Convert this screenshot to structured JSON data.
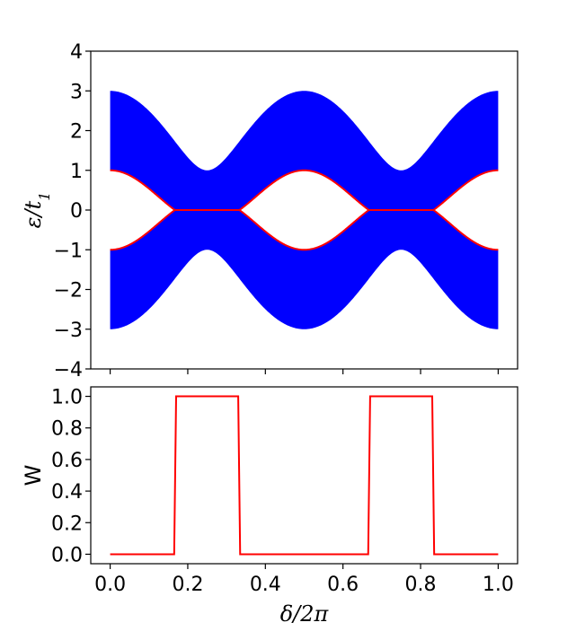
{
  "chart_data": [
    {
      "type": "area",
      "panel": "top",
      "ylabel": "ε/t₁",
      "ylabel_parts": {
        "main": "ε/t",
        "sub": "1"
      },
      "xlim": [
        -0.05,
        1.05
      ],
      "ylim": [
        -4,
        4
      ],
      "yticks": [
        4,
        3,
        2,
        1,
        0,
        -1,
        -2,
        -3,
        -4
      ],
      "ytick_labels": [
        "4",
        "3",
        "2",
        "1",
        "0",
        "−1",
        "−2",
        "−3",
        "−4"
      ],
      "xticks": [
        0.0,
        0.2,
        0.4,
        0.6,
        0.8,
        1.0
      ],
      "xtick_labels_shown": false,
      "band_color": "#0000ff",
      "edge_state_color": "#ff0000",
      "series": [],
      "bands_description_points": {
        "outer_band_top": [
          [
            0.0,
            3.0
          ],
          [
            0.25,
            1.0
          ],
          [
            0.5,
            3.0
          ],
          [
            0.75,
            1.0
          ],
          [
            1.0,
            3.0
          ]
        ],
        "inner_band_top": [
          [
            0.0,
            1.0
          ],
          [
            0.167,
            0.0
          ],
          [
            0.333,
            0.0
          ],
          [
            0.5,
            1.0
          ],
          [
            0.667,
            0.0
          ],
          [
            0.833,
            0.0
          ],
          [
            1.0,
            1.0
          ]
        ],
        "inner_band_bottom": [
          [
            0.0,
            -1.0
          ],
          [
            0.167,
            0.0
          ],
          [
            0.333,
            0.0
          ],
          [
            0.5,
            -1.0
          ],
          [
            0.667,
            0.0
          ],
          [
            0.833,
            0.0
          ],
          [
            1.0,
            -1.0
          ]
        ],
        "outer_band_bottom": [
          [
            0.0,
            -3.0
          ],
          [
            0.25,
            -1.0
          ],
          [
            0.5,
            -3.0
          ],
          [
            0.75,
            -1.0
          ],
          [
            1.0,
            -3.0
          ]
        ]
      }
    },
    {
      "type": "line",
      "panel": "bottom",
      "xlabel": "δ/2π",
      "ylabel": "W",
      "xlim": [
        -0.05,
        1.05
      ],
      "ylim": [
        -0.06,
        1.06
      ],
      "yticks": [
        1.0,
        0.8,
        0.6,
        0.4,
        0.2,
        0.0
      ],
      "ytick_labels": [
        "1.0",
        "0.8",
        "0.6",
        "0.4",
        "0.2",
        "0.0"
      ],
      "xticks": [
        0.0,
        0.2,
        0.4,
        0.6,
        0.8,
        1.0
      ],
      "xtick_labels": [
        "0.0",
        "0.2",
        "0.4",
        "0.6",
        "0.8",
        "1.0"
      ],
      "line_color": "#ff0000",
      "x": [
        0.0,
        0.165,
        0.17,
        0.33,
        0.335,
        0.665,
        0.67,
        0.83,
        0.835,
        1.0
      ],
      "y": [
        0.0,
        0.0,
        1.0,
        1.0,
        0.0,
        0.0,
        1.0,
        1.0,
        0.0,
        0.0
      ]
    }
  ]
}
